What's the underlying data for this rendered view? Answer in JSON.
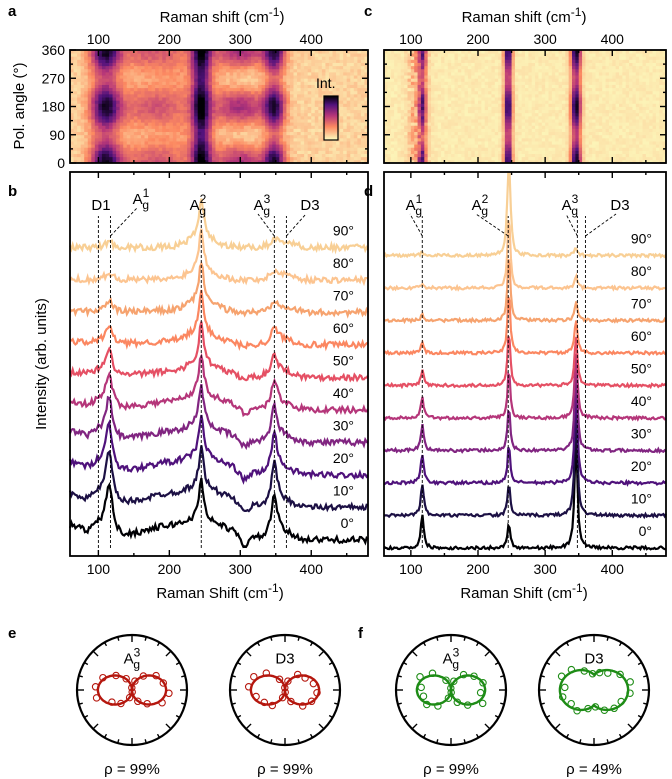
{
  "panel_letters": [
    "a",
    "b",
    "c",
    "d",
    "e",
    "f"
  ],
  "colorbar_label": "Int.",
  "chart_data": [
    {
      "panel": "a",
      "type": "heatmap",
      "xlabel": "Raman shift (cm",
      "xlabel_exp": "-1",
      "xlabel_close": ")",
      "ylabel": "Pol. angle (°)",
      "xlim": [
        60,
        480
      ],
      "ylim": [
        0,
        360
      ],
      "xticks": [
        100,
        200,
        300,
        400
      ],
      "yticks": [
        0,
        90,
        180,
        270,
        360
      ],
      "peaks_cm": [
        100,
        117,
        245,
        348
      ],
      "colormap": [
        "#fcfdbf",
        "#fc8961",
        "#b73779",
        "#51127c",
        "#000004"
      ]
    },
    {
      "panel": "b",
      "type": "line",
      "xlabel": "Raman Shift (cm",
      "xlabel_exp": "-1",
      "xlabel_close": ")",
      "ylabel": "Intensity (arb. units)",
      "xlim": [
        60,
        480
      ],
      "xticks": [
        100,
        200,
        300,
        400
      ],
      "angles": [
        "0°",
        "10°",
        "20°",
        "30°",
        "40°",
        "50°",
        "60°",
        "70°",
        "80°",
        "90°"
      ],
      "peak_labels": [
        {
          "base": "D1",
          "sup": "",
          "at": 100
        },
        {
          "base": "A",
          "sub": "g",
          "sup": "1",
          "at": 117
        },
        {
          "base": "A",
          "sub": "g",
          "sup": "2",
          "at": 245
        },
        {
          "base": "A",
          "sub": "g",
          "sup": "3",
          "at": 348
        },
        {
          "base": "D3",
          "sup": "",
          "at": 365
        }
      ],
      "series_colors": [
        "#000004",
        "#1c1044",
        "#4f127b",
        "#812581",
        "#b5367a",
        "#e55064",
        "#fb8761",
        "#f6a36f",
        "#fcc490",
        "#f8cf95"
      ]
    },
    {
      "panel": "c",
      "type": "heatmap",
      "xlabel": "Raman shift (cm",
      "xlabel_exp": "-1",
      "xlabel_close": ")",
      "xlim": [
        60,
        480
      ],
      "ylim": [
        0,
        360
      ],
      "xticks": [
        100,
        200,
        300,
        400
      ],
      "peaks_cm": [
        117,
        245,
        348
      ]
    },
    {
      "panel": "d",
      "type": "line",
      "xlabel": "Raman Shift (cm",
      "xlabel_exp": "-1",
      "xlabel_close": ")",
      "xlim": [
        60,
        480
      ],
      "xticks": [
        100,
        200,
        300,
        400
      ],
      "angles": [
        "0°",
        "10°",
        "20°",
        "30°",
        "40°",
        "50°",
        "60°",
        "70°",
        "80°",
        "90°"
      ],
      "peak_labels": [
        {
          "base": "A",
          "sub": "g",
          "sup": "1",
          "at": 117
        },
        {
          "base": "A",
          "sub": "g",
          "sup": "2",
          "at": 245
        },
        {
          "base": "A",
          "sub": "g",
          "sup": "3",
          "at": 348
        },
        {
          "base": "D3",
          "sup": "",
          "at": 360
        }
      ]
    },
    {
      "panel": "e",
      "type": "scatter",
      "polar": true,
      "color": "#b5170e",
      "plots": [
        {
          "label_base": "A",
          "label_sub": "g",
          "label_sup": "3",
          "rho": "ρ = 99%"
        },
        {
          "label_base": "D3",
          "rho": "ρ = 99%"
        }
      ]
    },
    {
      "panel": "f",
      "type": "scatter",
      "polar": true,
      "color": "#1e8c16",
      "plots": [
        {
          "label_base": "A",
          "label_sub": "g",
          "label_sup": "3",
          "rho": "ρ = 99%"
        },
        {
          "label_base": "D3",
          "rho": "ρ = 49%"
        }
      ]
    }
  ]
}
